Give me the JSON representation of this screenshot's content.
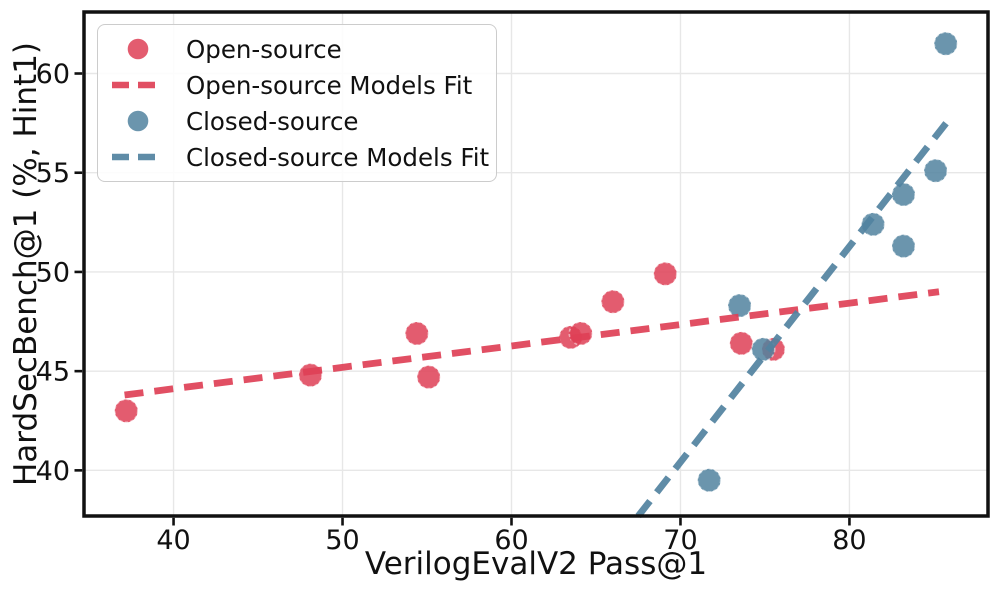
{
  "figure": {
    "background": "#ffffff",
    "axis_color": "#111111",
    "grid_color": "#e7e7e7",
    "tick_label_color": "#111111"
  },
  "chart_data": {
    "type": "scatter",
    "title": "",
    "xlabel": "VerilogEvalV2 Pass@1",
    "ylabel": "HardSecBench@1 (%, Hint1)",
    "xlim": [
      34.7,
      88.2
    ],
    "ylim": [
      37.7,
      63.1
    ],
    "x_ticks": [
      40,
      50,
      60,
      70,
      80
    ],
    "y_ticks": [
      40,
      45,
      50,
      55,
      60
    ],
    "grid": true,
    "legend_position": "upper-left",
    "series": [
      {
        "name": "Open-source",
        "kind": "scatter",
        "color": "#de4056",
        "points": [
          [
            37.2,
            43.0
          ],
          [
            48.1,
            44.8
          ],
          [
            54.4,
            46.9
          ],
          [
            55.1,
            44.7
          ],
          [
            63.5,
            46.7
          ],
          [
            64.1,
            46.9
          ],
          [
            66.0,
            48.5
          ],
          [
            69.1,
            49.9
          ],
          [
            73.6,
            46.4
          ],
          [
            75.5,
            46.1
          ]
        ]
      },
      {
        "name": "Open-source Models Fit",
        "kind": "dashed_line",
        "color": "#de4056",
        "points": [
          [
            37.1,
            43.8
          ],
          [
            85.3,
            49.0
          ]
        ]
      },
      {
        "name": "Closed-source",
        "kind": "scatter",
        "color": "#51829f",
        "points": [
          [
            71.7,
            39.5
          ],
          [
            73.5,
            48.3
          ],
          [
            74.9,
            46.1
          ],
          [
            81.4,
            52.4
          ],
          [
            83.2,
            51.3
          ],
          [
            83.2,
            53.9
          ],
          [
            85.1,
            55.1
          ],
          [
            85.7,
            61.5
          ]
        ]
      },
      {
        "name": "Closed-source Models Fit",
        "kind": "dashed_line",
        "color": "#51829f",
        "points": [
          [
            67.5,
            37.7
          ],
          [
            86.0,
            57.8
          ]
        ]
      }
    ]
  }
}
